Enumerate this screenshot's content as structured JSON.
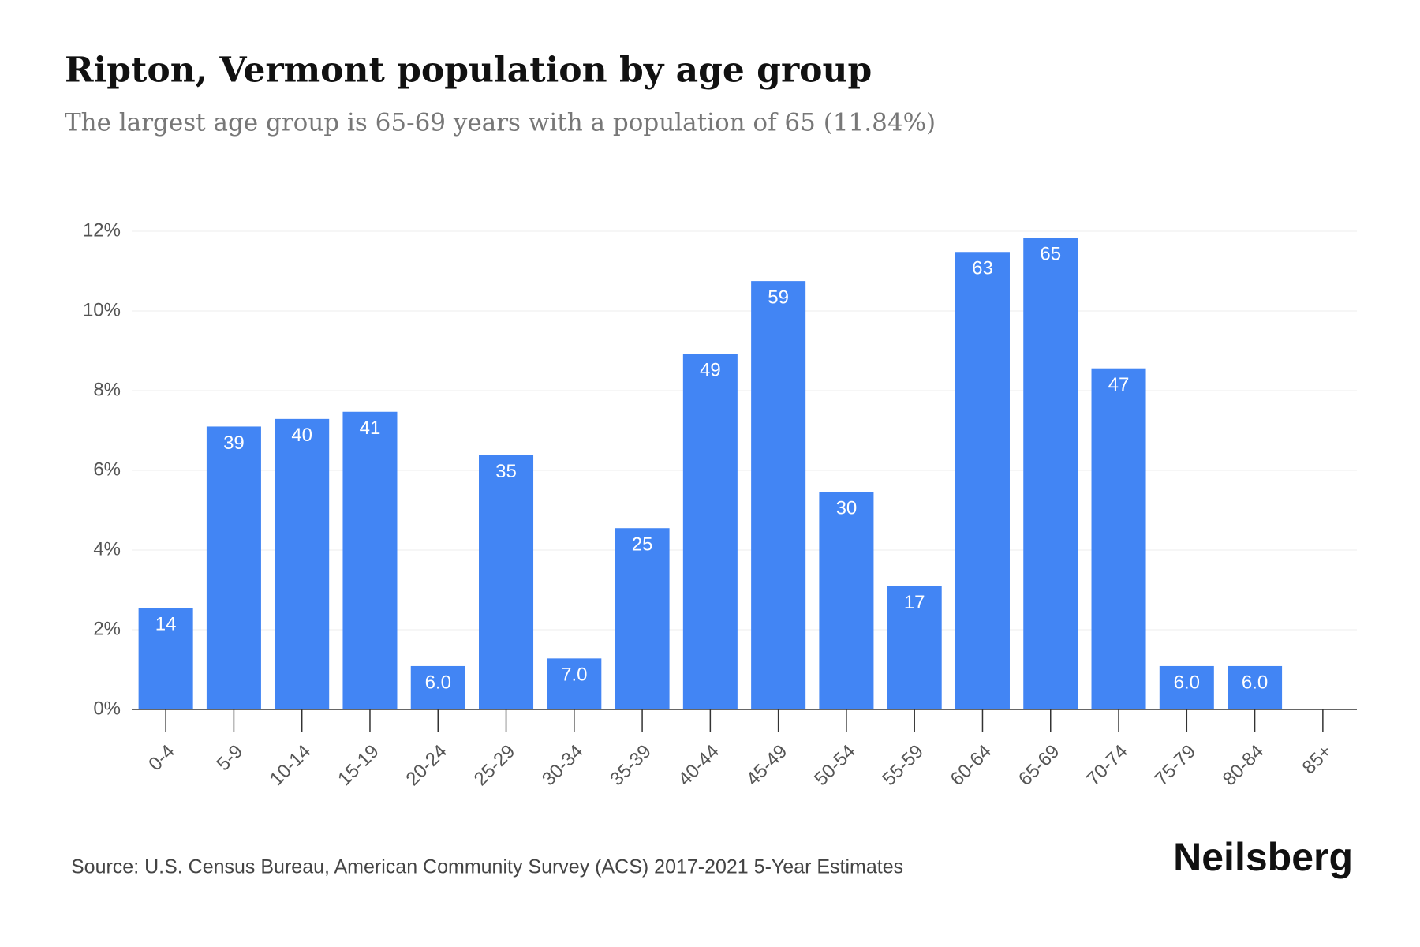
{
  "chart_data": {
    "type": "bar",
    "title": "Ripton, Vermont population by age group",
    "subtitle": "The largest age group is 65-69 years with a population of 65 (11.84%)",
    "categories": [
      "0-4",
      "5-9",
      "10-14",
      "15-19",
      "20-24",
      "25-29",
      "30-34",
      "35-39",
      "40-44",
      "45-49",
      "50-54",
      "55-59",
      "60-64",
      "65-69",
      "70-74",
      "75-79",
      "80-84",
      "85+"
    ],
    "values": [
      2.55,
      7.1,
      7.29,
      7.47,
      1.09,
      6.38,
      1.28,
      4.55,
      8.93,
      10.75,
      5.46,
      3.1,
      11.48,
      11.84,
      8.56,
      1.09,
      1.09,
      0
    ],
    "data_labels": [
      "14",
      "39",
      "40",
      "41",
      "6.0",
      "35",
      "7.0",
      "25",
      "49",
      "59",
      "30",
      "17",
      "63",
      "65",
      "47",
      "6.0",
      "6.0",
      null
    ],
    "color": "#4285f4",
    "ylim": [
      0,
      12
    ],
    "yticks": [
      {
        "value": 0,
        "label": "0%"
      },
      {
        "value": 2,
        "label": "2%"
      },
      {
        "value": 4,
        "label": "4%"
      },
      {
        "value": 6,
        "label": "6%"
      },
      {
        "value": 8,
        "label": "8%"
      },
      {
        "value": 10,
        "label": "10%"
      },
      {
        "value": 12,
        "label": "12%"
      }
    ],
    "grid": true,
    "source": "Source: U.S. Census Bureau, American Community Survey (ACS) 2017-2021 5-Year Estimates",
    "brand": "Neilsberg"
  }
}
